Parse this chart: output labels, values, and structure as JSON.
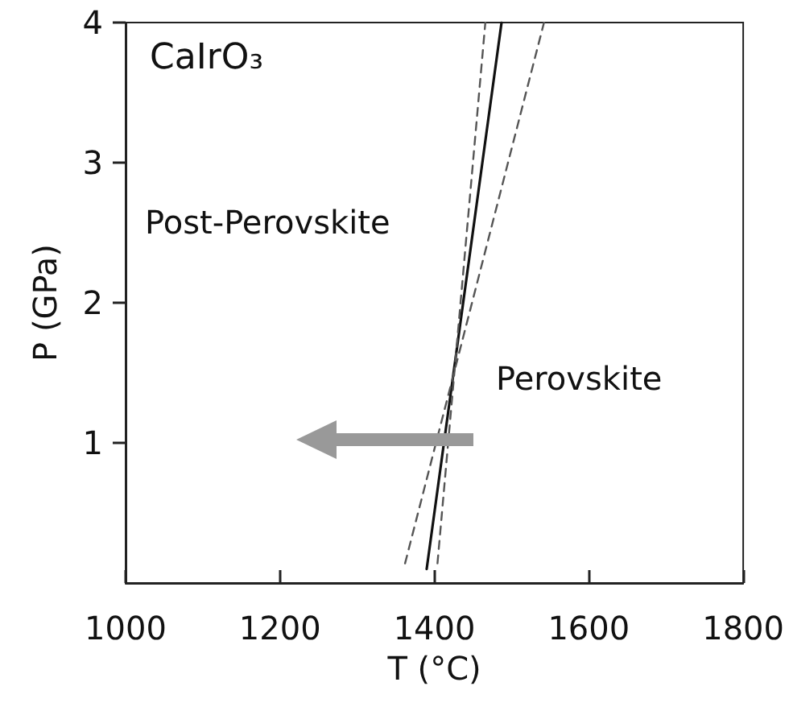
{
  "chart_data": {
    "type": "line",
    "title": "CaIrO₃",
    "xlabel": "T (°C)",
    "ylabel": "P (GPa)",
    "annotations": [
      "Post-Perovskite",
      "Perovskite"
    ],
    "series": [
      {
        "color": "#111111",
        "line_style": "solid",
        "x": [
          1390,
          1487
        ],
        "values": [
          0.1,
          4
        ]
      },
      {
        "color": "#555555",
        "line_style": "dashed",
        "x": [
          1404,
          1466
        ],
        "values": [
          0.14,
          4
        ]
      },
      {
        "color": "#555555",
        "line_style": "dashed",
        "x": [
          1362,
          1542
        ],
        "values": [
          0.14,
          4
        ]
      }
    ],
    "xlim": [
      1000,
      1800
    ],
    "xticks": [
      1000,
      1200,
      1400,
      1600,
      1800
    ],
    "ylim": [
      0,
      4
    ],
    "yticks": [
      1,
      2,
      3,
      4
    ],
    "marker": "none",
    "grid": false
  }
}
